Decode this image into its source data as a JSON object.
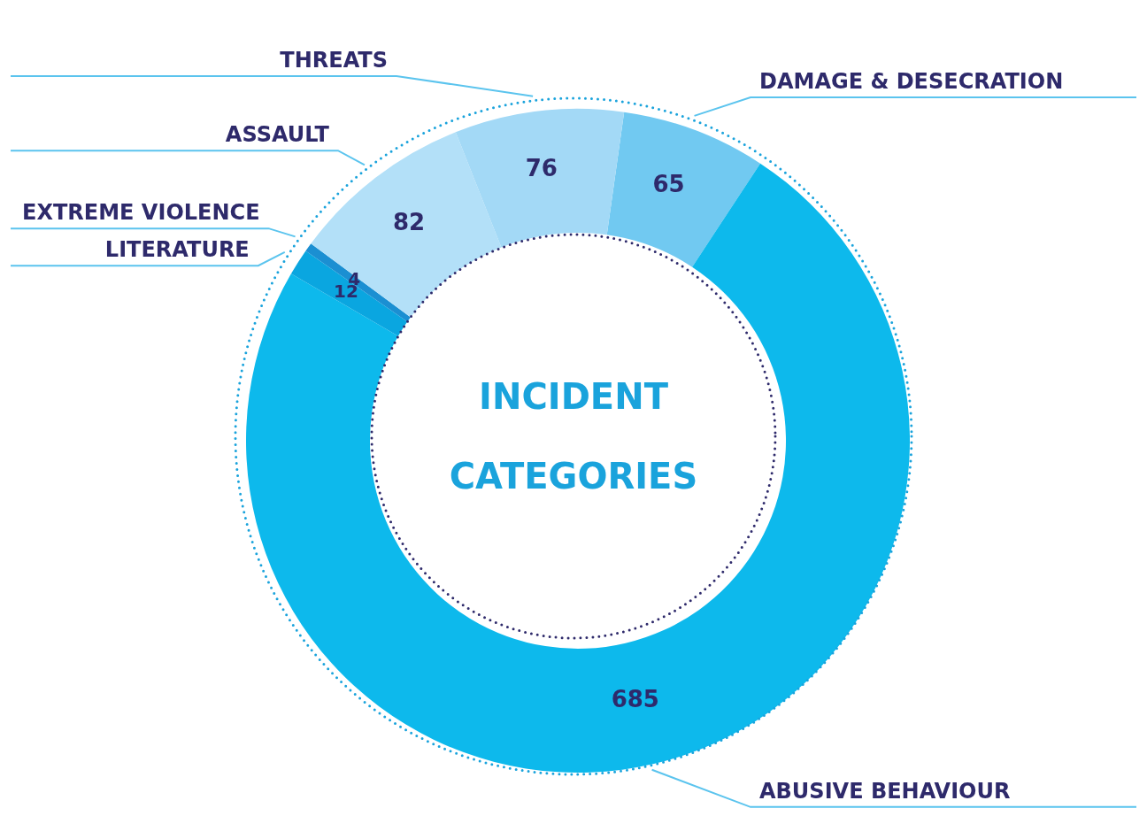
{
  "chart_data": {
    "type": "donut",
    "title": "INCIDENT CATEGORIES",
    "categories": [
      "DAMAGE & DESECRATION",
      "ABUSIVE BEHAVIOUR",
      "LITERATURE",
      "EXTREME VIOLENCE",
      "ASSAULT",
      "THREATS"
    ],
    "values": [
      65,
      685,
      12,
      4,
      82,
      76
    ],
    "colors": [
      "#71c9f1",
      "#0db9ec",
      "#0aa6e0",
      "#1b8fd2",
      "#b3e0f8",
      "#a3d9f6"
    ],
    "data_labels": true
  }
}
